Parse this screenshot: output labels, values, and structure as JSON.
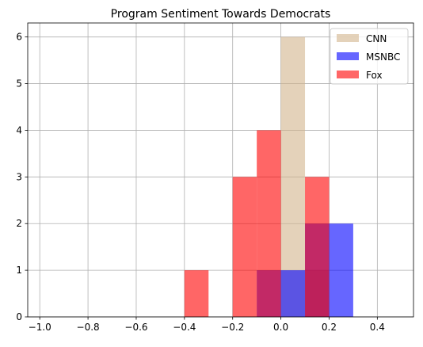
{
  "chart_data": {
    "type": "bar",
    "title": "Program Sentiment Towards Democrats",
    "xlabel": "",
    "ylabel": "",
    "xlim": [
      -1.05,
      0.55
    ],
    "ylim": [
      0,
      6.3
    ],
    "x_ticks": [
      "−1.0",
      "−0.8",
      "−0.6",
      "−0.4",
      "−0.2",
      "0.0",
      "0.2",
      "0.4"
    ],
    "y_ticks": [
      "0",
      "1",
      "2",
      "3",
      "4",
      "5",
      "6"
    ],
    "grid": true,
    "legend_position": "top-right",
    "series": [
      {
        "name": "CNN",
        "color": "#d2b48c",
        "opacity": 0.6,
        "bins": [
          {
            "x0": 0.0,
            "x1": 0.1,
            "count": 6
          },
          {
            "x0": 0.1,
            "x1": 0.2,
            "count": 1
          }
        ]
      },
      {
        "name": "MSNBC",
        "color": "#0000ff",
        "opacity": 0.6,
        "bins": [
          {
            "x0": -0.1,
            "x1": 0.0,
            "count": 1
          },
          {
            "x0": 0.0,
            "x1": 0.1,
            "count": 1
          },
          {
            "x0": 0.1,
            "x1": 0.2,
            "count": 2
          },
          {
            "x0": 0.2,
            "x1": 0.3,
            "count": 2
          }
        ]
      },
      {
        "name": "Fox",
        "color": "#ff0000",
        "opacity": 0.6,
        "bins": [
          {
            "x0": -0.4,
            "x1": -0.3,
            "count": 1
          },
          {
            "x0": -0.2,
            "x1": -0.1,
            "count": 3
          },
          {
            "x0": -0.1,
            "x1": 0.0,
            "count": 4
          },
          {
            "x0": 0.1,
            "x1": 0.2,
            "count": 3
          }
        ]
      }
    ]
  }
}
